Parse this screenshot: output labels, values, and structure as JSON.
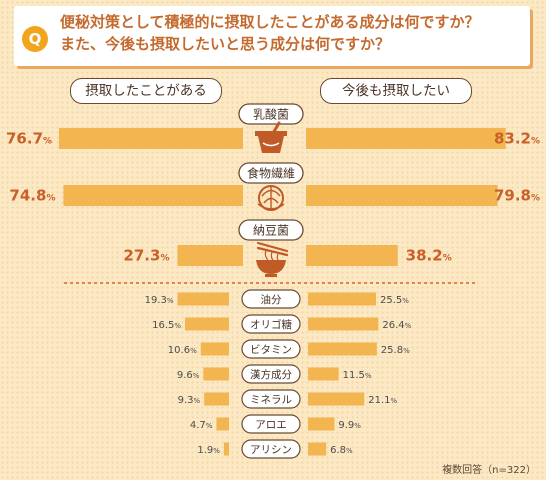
{
  "question": {
    "badge": "Q",
    "line1": "便秘対策として積極的に摂取したことがある成分は何ですか？",
    "line2": "また、今後も摂取したいと思う成分は何ですか？"
  },
  "headers": {
    "left": "摂取したことがある",
    "right": "今後も摂取したい"
  },
  "note": "複数回答（n=322）",
  "colors": {
    "bar": "#f2b54f",
    "big_value": "#c9602a",
    "small_value": "#4d4d4d",
    "text": "#4a3326",
    "dashed": "#d8642a",
    "icon": "#c05a27"
  },
  "icons": [
    "yogurt-icon",
    "cabbage-icon",
    "natto-icon"
  ],
  "chart_data": {
    "type": "bar",
    "layout": "butterfly",
    "unit": "%",
    "categories": [
      "乳酸菌",
      "食物繊維",
      "納豆菌",
      "油分",
      "オリゴ糖",
      "ビタミン",
      "漢方成分",
      "ミネラル",
      "アロエ",
      "アリシン"
    ],
    "series": [
      {
        "name": "摂取したことがある",
        "values": [
          76.7,
          74.8,
          27.3,
          19.3,
          16.5,
          10.6,
          9.6,
          9.3,
          4.7,
          1.9
        ]
      },
      {
        "name": "今後も摂取したい",
        "values": [
          83.2,
          79.8,
          38.2,
          25.5,
          26.4,
          25.8,
          11.5,
          21.1,
          9.9,
          6.8
        ]
      }
    ],
    "xlim": [
      0,
      100
    ]
  }
}
